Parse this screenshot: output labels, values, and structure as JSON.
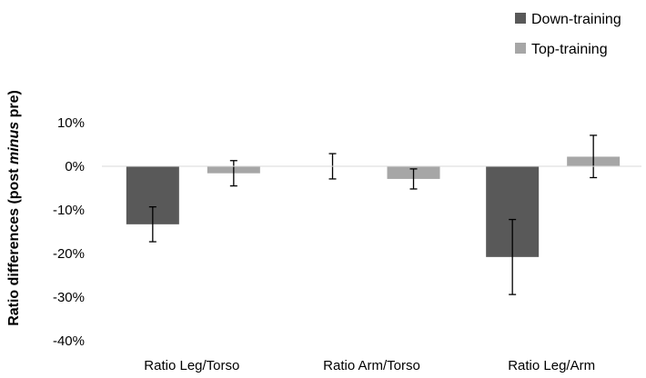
{
  "chart_data": {
    "type": "bar",
    "categories": [
      "Ratio Leg/Torso",
      "Ratio Arm/Torso",
      "Ratio Leg/Arm"
    ],
    "series": [
      {
        "name": "Down-training",
        "color": "#595959",
        "values": [
          -13.3,
          0,
          -20.8
        ],
        "error_low": [
          -17.3,
          -2.9,
          -29.4
        ],
        "error_high": [
          -9.3,
          2.9,
          -12.2
        ]
      },
      {
        "name": "Top-training",
        "color": "#a6a6a6",
        "values": [
          -1.6,
          -2.9,
          2.2
        ],
        "error_low": [
          -4.5,
          -5.2,
          -2.6
        ],
        "error_high": [
          1.3,
          -0.6,
          7.1
        ]
      }
    ],
    "ylabel_parts": [
      "Ratio differences (post ",
      "minus",
      " pre)"
    ],
    "ylim": [
      -40,
      10
    ],
    "yticks": [
      10,
      0,
      -10,
      -20,
      -30,
      -40
    ],
    "ytick_labels": [
      "10%",
      "0%",
      "-10%",
      "-20%",
      "-30%",
      "-40%"
    ],
    "grid": false,
    "legend_position": "top-right"
  }
}
